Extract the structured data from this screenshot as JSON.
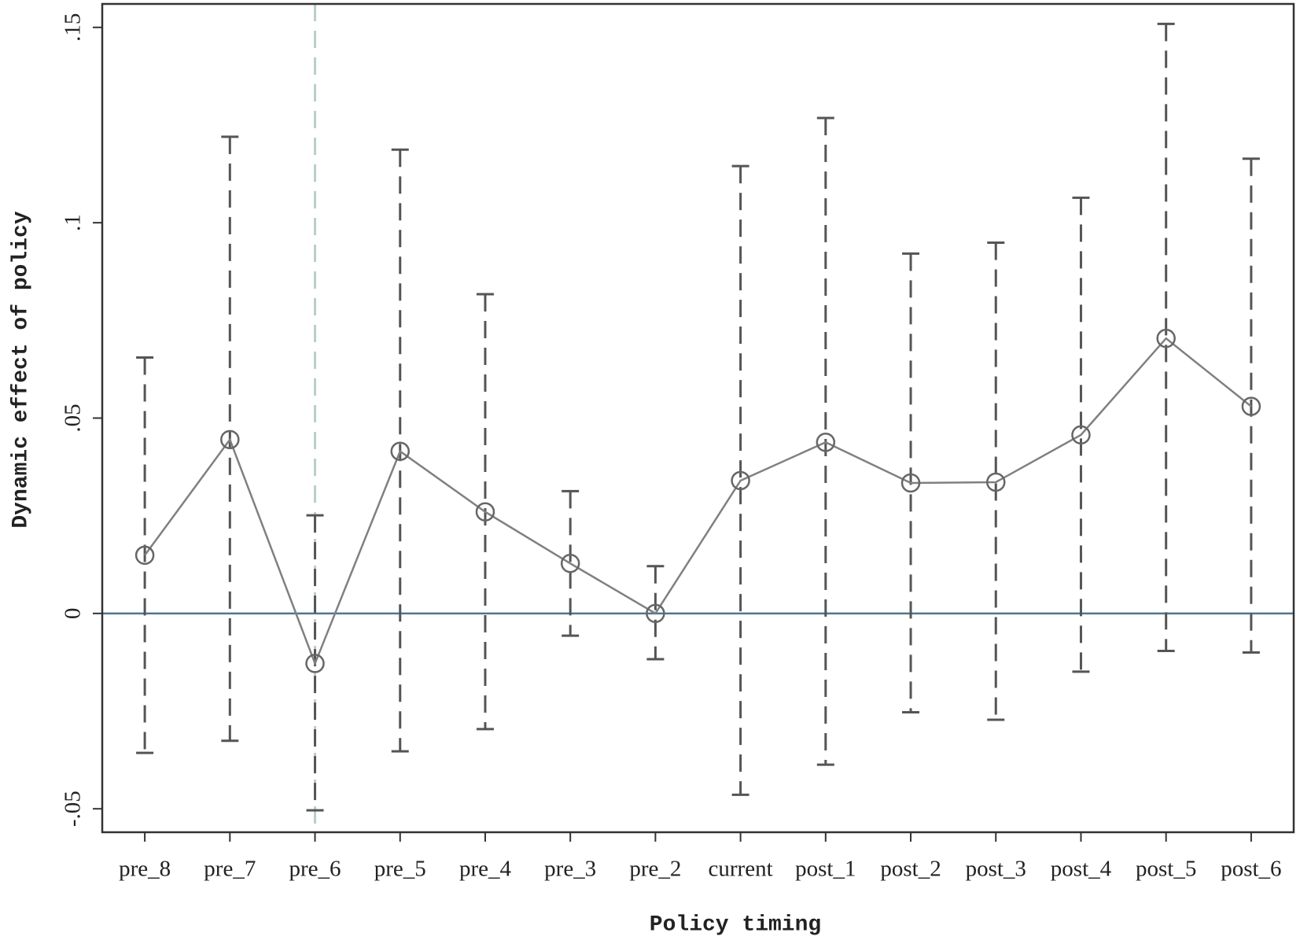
{
  "chart_data": {
    "type": "errorbar-line",
    "x_label": "Policy timing",
    "y_label": "Dynamic effect of policy",
    "categories": [
      "pre_8",
      "pre_7",
      "pre_6",
      "pre_5",
      "pre_4",
      "pre_3",
      "pre_2",
      "current",
      "post_1",
      "post_2",
      "post_3",
      "post_4",
      "post_5",
      "post_6"
    ],
    "values": [
      0.0149,
      0.0445,
      -0.0128,
      0.0415,
      0.026,
      0.0128,
      0,
      0.034,
      0.0438,
      0.0334,
      0.0336,
      0.0457,
      0.0704,
      0.053
    ],
    "ci_lower": [
      -0.0357,
      -0.0326,
      -0.0504,
      -0.0353,
      -0.0296,
      -0.0057,
      -0.0117,
      -0.0464,
      -0.0387,
      -0.0253,
      -0.0272,
      -0.0149,
      -0.0096,
      -0.01
    ],
    "ci_upper": [
      0.0655,
      0.122,
      0.0251,
      0.1187,
      0.0817,
      0.0313,
      0.0121,
      0.1145,
      0.1268,
      0.0921,
      0.0949,
      0.1064,
      0.1509,
      0.1164
    ],
    "color": "#808080",
    "ci_color": "#555555",
    "hline": 0,
    "hline_color": "#4f7591",
    "vline": "pre_6",
    "vline_color": "#b8cfc9",
    "ylim": [
      -0.056,
      0.156
    ],
    "yticks": [
      {
        "value": -0.05,
        "label": "-.05"
      },
      0,
      {
        "value": 0.05,
        "label": ".05"
      },
      {
        "value": 0.1,
        "label": ".1"
      },
      {
        "value": 0.15,
        "label": ".15"
      }
    ]
  }
}
